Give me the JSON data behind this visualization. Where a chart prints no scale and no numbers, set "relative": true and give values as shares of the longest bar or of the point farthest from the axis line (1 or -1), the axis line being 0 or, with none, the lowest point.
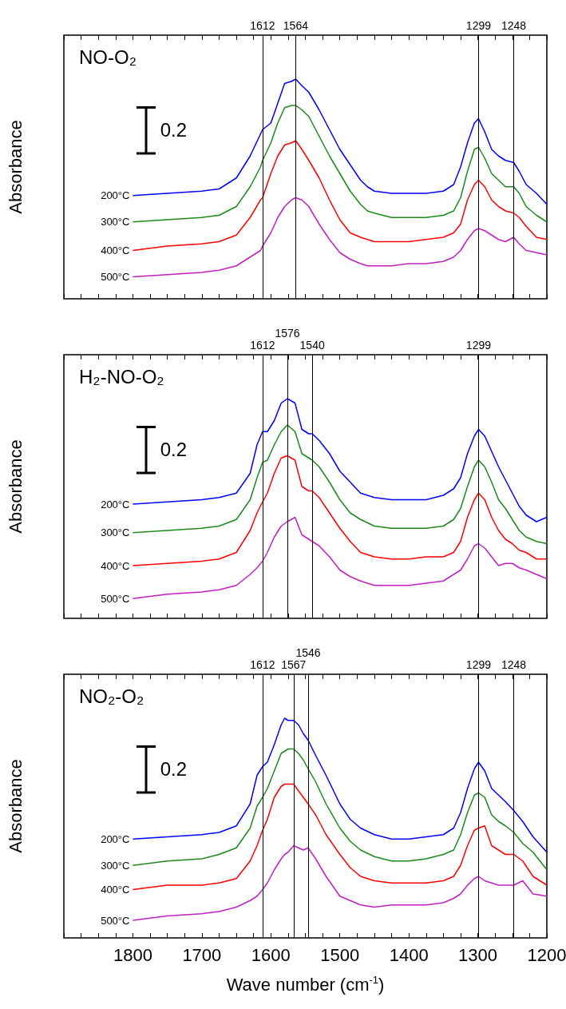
{
  "chart_data": [
    {
      "type": "line",
      "title": "NO-O₂",
      "ylabel": "Absorbance",
      "annotations": [
        "0.2"
      ],
      "relative": true,
      "tick_labels": false,
      "xlim": [
        1900,
        1200
      ],
      "xticks": [
        {
          "value": 1900,
          "label": null
        },
        {
          "value": 1875,
          "label": null
        },
        {
          "value": 1850,
          "label": null
        },
        {
          "value": 1825,
          "label": null
        },
        {
          "value": 1800,
          "label": null
        },
        {
          "value": 1775,
          "label": null
        },
        {
          "value": 1750,
          "label": null
        },
        {
          "value": 1725,
          "label": null
        },
        {
          "value": 1700,
          "label": null
        },
        {
          "value": 1675,
          "label": null
        },
        {
          "value": 1650,
          "label": null
        },
        {
          "value": 1625,
          "label": null
        },
        {
          "value": 1600,
          "label": null
        },
        {
          "value": 1575,
          "label": null
        },
        {
          "value": 1550,
          "label": null
        },
        {
          "value": 1525,
          "label": null
        },
        {
          "value": 1500,
          "label": null
        },
        {
          "value": 1475,
          "label": null
        },
        {
          "value": 1450,
          "label": null
        },
        {
          "value": 1425,
          "label": null
        },
        {
          "value": 1400,
          "label": null
        },
        {
          "value": 1375,
          "label": null
        },
        {
          "value": 1350,
          "label": null
        },
        {
          "value": 1325,
          "label": null
        },
        {
          "value": 1300,
          "label": null
        },
        {
          "value": 1275,
          "label": null
        },
        {
          "value": 1250,
          "label": null
        },
        {
          "value": 1225,
          "label": null
        },
        {
          "value": 1200,
          "label": null
        }
      ],
      "ref_lines": [
        {
          "axis": "x",
          "value": 1612,
          "label": "1612"
        },
        {
          "axis": "x",
          "value": 1564,
          "label": "1564"
        },
        {
          "axis": "x",
          "value": 1299,
          "label": "1299"
        },
        {
          "axis": "x",
          "value": 1248,
          "label": "1248"
        }
      ],
      "x": [
        1800,
        1750,
        1700,
        1675,
        1650,
        1630,
        1615,
        1612,
        1600,
        1590,
        1580,
        1570,
        1564,
        1555,
        1545,
        1530,
        1515,
        1500,
        1485,
        1470,
        1460,
        1450,
        1425,
        1400,
        1375,
        1350,
        1335,
        1325,
        1315,
        1305,
        1299,
        1290,
        1280,
        1270,
        1260,
        1248,
        1240,
        1230,
        1215,
        1200
      ],
      "series": [
        {
          "name": "200°C",
          "color": "#0000ff",
          "values": [
            0.47,
            0.48,
            0.49,
            0.5,
            0.55,
            0.65,
            0.75,
            0.77,
            0.8,
            0.89,
            0.98,
            0.99,
            1.0,
            0.97,
            0.94,
            0.86,
            0.77,
            0.68,
            0.61,
            0.54,
            0.51,
            0.49,
            0.48,
            0.48,
            0.48,
            0.49,
            0.52,
            0.6,
            0.71,
            0.8,
            0.82,
            0.76,
            0.68,
            0.65,
            0.63,
            0.62,
            0.58,
            0.52,
            0.48,
            0.43
          ]
        },
        {
          "name": "300°C",
          "color": "#1a8a1a",
          "values": [
            0.35,
            0.36,
            0.37,
            0.38,
            0.42,
            0.51,
            0.6,
            0.63,
            0.71,
            0.8,
            0.87,
            0.88,
            0.88,
            0.86,
            0.83,
            0.74,
            0.65,
            0.57,
            0.49,
            0.43,
            0.4,
            0.39,
            0.37,
            0.37,
            0.37,
            0.38,
            0.4,
            0.46,
            0.58,
            0.68,
            0.69,
            0.64,
            0.57,
            0.54,
            0.51,
            0.51,
            0.48,
            0.42,
            0.38,
            0.35
          ]
        },
        {
          "name": "400°C",
          "color": "#ff0000",
          "values": [
            0.22,
            0.24,
            0.25,
            0.26,
            0.29,
            0.37,
            0.45,
            0.46,
            0.57,
            0.65,
            0.7,
            0.71,
            0.72,
            0.68,
            0.63,
            0.55,
            0.45,
            0.36,
            0.3,
            0.28,
            0.27,
            0.26,
            0.26,
            0.26,
            0.27,
            0.28,
            0.3,
            0.34,
            0.45,
            0.52,
            0.54,
            0.51,
            0.45,
            0.42,
            0.4,
            0.39,
            0.37,
            0.33,
            0.28,
            0.27
          ]
        },
        {
          "name": "500°C",
          "color": "#c020c0",
          "values": [
            0.1,
            0.11,
            0.12,
            0.13,
            0.15,
            0.19,
            0.22,
            0.24,
            0.3,
            0.37,
            0.42,
            0.45,
            0.46,
            0.45,
            0.42,
            0.34,
            0.27,
            0.21,
            0.18,
            0.16,
            0.15,
            0.15,
            0.15,
            0.16,
            0.16,
            0.17,
            0.19,
            0.22,
            0.27,
            0.31,
            0.32,
            0.31,
            0.29,
            0.27,
            0.26,
            0.28,
            0.25,
            0.22,
            0.21,
            0.2
          ]
        }
      ]
    },
    {
      "type": "line",
      "title": "H₂-NO-O₂",
      "ylabel": "Absorbance",
      "annotations": [
        "0.2"
      ],
      "relative": true,
      "tick_labels": false,
      "xlim": [
        1900,
        1200
      ],
      "xticks": [
        {
          "value": 1900,
          "label": null
        },
        {
          "value": 1875,
          "label": null
        },
        {
          "value": 1850,
          "label": null
        },
        {
          "value": 1825,
          "label": null
        },
        {
          "value": 1800,
          "label": null
        },
        {
          "value": 1775,
          "label": null
        },
        {
          "value": 1750,
          "label": null
        },
        {
          "value": 1725,
          "label": null
        },
        {
          "value": 1700,
          "label": null
        },
        {
          "value": 1675,
          "label": null
        },
        {
          "value": 1650,
          "label": null
        },
        {
          "value": 1625,
          "label": null
        },
        {
          "value": 1600,
          "label": null
        },
        {
          "value": 1575,
          "label": null
        },
        {
          "value": 1550,
          "label": null
        },
        {
          "value": 1525,
          "label": null
        },
        {
          "value": 1500,
          "label": null
        },
        {
          "value": 1475,
          "label": null
        },
        {
          "value": 1450,
          "label": null
        },
        {
          "value": 1425,
          "label": null
        },
        {
          "value": 1400,
          "label": null
        },
        {
          "value": 1375,
          "label": null
        },
        {
          "value": 1350,
          "label": null
        },
        {
          "value": 1325,
          "label": null
        },
        {
          "value": 1300,
          "label": null
        },
        {
          "value": 1275,
          "label": null
        },
        {
          "value": 1250,
          "label": null
        },
        {
          "value": 1225,
          "label": null
        },
        {
          "value": 1200,
          "label": null
        }
      ],
      "ref_lines": [
        {
          "axis": "x",
          "value": 1612,
          "label": "1612"
        },
        {
          "axis": "x",
          "value": 1576,
          "label": "1576"
        },
        {
          "axis": "x",
          "value": 1540,
          "label": "1540"
        },
        {
          "axis": "x",
          "value": 1299,
          "label": "1299"
        }
      ],
      "x": [
        1800,
        1750,
        1700,
        1675,
        1650,
        1630,
        1620,
        1612,
        1605,
        1595,
        1585,
        1576,
        1565,
        1555,
        1545,
        1540,
        1530,
        1515,
        1500,
        1485,
        1470,
        1450,
        1425,
        1400,
        1375,
        1350,
        1335,
        1325,
        1315,
        1305,
        1299,
        1290,
        1280,
        1270,
        1260,
        1250,
        1240,
        1230,
        1215,
        1200
      ],
      "series": [
        {
          "name": "200°C",
          "color": "#0000ff",
          "values": [
            0.52,
            0.53,
            0.54,
            0.55,
            0.57,
            0.66,
            0.79,
            0.85,
            0.85,
            0.9,
            0.98,
            1.0,
            0.98,
            0.86,
            0.84,
            0.84,
            0.81,
            0.75,
            0.67,
            0.62,
            0.57,
            0.55,
            0.54,
            0.54,
            0.54,
            0.56,
            0.59,
            0.64,
            0.75,
            0.83,
            0.86,
            0.83,
            0.76,
            0.69,
            0.63,
            0.57,
            0.51,
            0.47,
            0.44,
            0.46
          ]
        },
        {
          "name": "300°C",
          "color": "#1a8a1a",
          "values": [
            0.39,
            0.4,
            0.41,
            0.42,
            0.45,
            0.54,
            0.64,
            0.71,
            0.72,
            0.79,
            0.85,
            0.88,
            0.85,
            0.75,
            0.73,
            0.72,
            0.69,
            0.62,
            0.54,
            0.48,
            0.45,
            0.42,
            0.41,
            0.41,
            0.41,
            0.42,
            0.45,
            0.5,
            0.6,
            0.69,
            0.72,
            0.69,
            0.62,
            0.54,
            0.5,
            0.45,
            0.4,
            0.37,
            0.35,
            0.34
          ]
        },
        {
          "name": "400°C",
          "color": "#ff0000",
          "values": [
            0.24,
            0.25,
            0.26,
            0.27,
            0.3,
            0.4,
            0.48,
            0.53,
            0.57,
            0.66,
            0.73,
            0.74,
            0.72,
            0.6,
            0.58,
            0.58,
            0.55,
            0.48,
            0.41,
            0.35,
            0.3,
            0.28,
            0.27,
            0.27,
            0.28,
            0.28,
            0.3,
            0.35,
            0.46,
            0.54,
            0.57,
            0.54,
            0.46,
            0.4,
            0.36,
            0.34,
            0.31,
            0.3,
            0.27,
            0.27
          ]
        },
        {
          "name": "500°C",
          "color": "#c020c0",
          "values": [
            0.09,
            0.11,
            0.12,
            0.13,
            0.15,
            0.2,
            0.23,
            0.26,
            0.3,
            0.37,
            0.42,
            0.44,
            0.46,
            0.38,
            0.36,
            0.35,
            0.33,
            0.28,
            0.22,
            0.19,
            0.17,
            0.15,
            0.15,
            0.15,
            0.16,
            0.17,
            0.2,
            0.22,
            0.27,
            0.33,
            0.34,
            0.32,
            0.28,
            0.24,
            0.25,
            0.25,
            0.23,
            0.22,
            0.2,
            0.18
          ]
        }
      ]
    },
    {
      "type": "line",
      "title": "NO₂-O₂",
      "xlabel": "Wave number (cm$^{-1}$)",
      "ylabel": "Absorbance",
      "annotations": [
        "0.2"
      ],
      "relative": true,
      "tick_labels": "x",
      "xlim": [
        1900,
        1200
      ],
      "xticks": [
        {
          "value": 1900,
          "label": null
        },
        {
          "value": 1875,
          "label": null
        },
        {
          "value": 1850,
          "label": null
        },
        {
          "value": 1825,
          "label": null
        },
        1800,
        {
          "value": 1775,
          "label": null
        },
        {
          "value": 1750,
          "label": null
        },
        {
          "value": 1725,
          "label": null
        },
        1700,
        {
          "value": 1675,
          "label": null
        },
        {
          "value": 1650,
          "label": null
        },
        {
          "value": 1625,
          "label": null
        },
        1600,
        {
          "value": 1575,
          "label": null
        },
        {
          "value": 1550,
          "label": null
        },
        {
          "value": 1525,
          "label": null
        },
        1500,
        {
          "value": 1475,
          "label": null
        },
        {
          "value": 1450,
          "label": null
        },
        {
          "value": 1425,
          "label": null
        },
        1400,
        {
          "value": 1375,
          "label": null
        },
        {
          "value": 1350,
          "label": null
        },
        {
          "value": 1325,
          "label": null
        },
        1300,
        {
          "value": 1275,
          "label": null
        },
        {
          "value": 1250,
          "label": null
        },
        {
          "value": 1225,
          "label": null
        },
        1200
      ],
      "ref_lines": [
        {
          "axis": "x",
          "value": 1612,
          "label": "1612"
        },
        {
          "axis": "x",
          "value": 1567,
          "label": "1567"
        },
        {
          "axis": "x",
          "value": 1546,
          "label": "1546"
        },
        {
          "axis": "x",
          "value": 1299,
          "label": "1299"
        },
        {
          "axis": "x",
          "value": 1248,
          "label": "1248"
        }
      ],
      "x": [
        1800,
        1750,
        1700,
        1675,
        1650,
        1630,
        1620,
        1612,
        1605,
        1595,
        1585,
        1580,
        1575,
        1567,
        1560,
        1553,
        1546,
        1535,
        1520,
        1500,
        1485,
        1470,
        1450,
        1425,
        1400,
        1375,
        1350,
        1335,
        1325,
        1315,
        1305,
        1299,
        1290,
        1280,
        1270,
        1260,
        1248,
        1235,
        1220,
        1200
      ],
      "series": [
        {
          "name": "200°C",
          "color": "#0000ff",
          "values": [
            0.45,
            0.46,
            0.47,
            0.48,
            0.51,
            0.61,
            0.74,
            0.78,
            0.8,
            0.88,
            0.97,
            1.0,
            0.99,
            0.99,
            0.97,
            0.93,
            0.9,
            0.83,
            0.74,
            0.61,
            0.54,
            0.5,
            0.47,
            0.45,
            0.45,
            0.46,
            0.47,
            0.5,
            0.57,
            0.68,
            0.77,
            0.8,
            0.76,
            0.68,
            0.65,
            0.62,
            0.58,
            0.53,
            0.46,
            0.39
          ]
        },
        {
          "name": "300°C",
          "color": "#1a8a1a",
          "values": [
            0.33,
            0.35,
            0.36,
            0.38,
            0.41,
            0.5,
            0.6,
            0.64,
            0.68,
            0.76,
            0.84,
            0.85,
            0.86,
            0.86,
            0.84,
            0.81,
            0.77,
            0.71,
            0.61,
            0.5,
            0.44,
            0.4,
            0.37,
            0.35,
            0.35,
            0.36,
            0.38,
            0.4,
            0.47,
            0.57,
            0.65,
            0.66,
            0.64,
            0.56,
            0.53,
            0.51,
            0.48,
            0.43,
            0.39,
            0.31
          ]
        },
        {
          "name": "400°C",
          "color": "#ff0000",
          "values": [
            0.22,
            0.24,
            0.24,
            0.25,
            0.27,
            0.35,
            0.42,
            0.49,
            0.54,
            0.64,
            0.69,
            0.7,
            0.7,
            0.7,
            0.67,
            0.64,
            0.61,
            0.56,
            0.47,
            0.38,
            0.32,
            0.28,
            0.26,
            0.25,
            0.25,
            0.25,
            0.26,
            0.28,
            0.33,
            0.42,
            0.49,
            0.5,
            0.51,
            0.42,
            0.4,
            0.38,
            0.38,
            0.35,
            0.28,
            0.24
          ]
        },
        {
          "name": "500°C",
          "color": "#c020c0",
          "values": [
            0.08,
            0.1,
            0.11,
            0.12,
            0.14,
            0.17,
            0.19,
            0.22,
            0.25,
            0.31,
            0.36,
            0.38,
            0.39,
            0.42,
            0.41,
            0.4,
            0.41,
            0.36,
            0.28,
            0.19,
            0.17,
            0.15,
            0.14,
            0.15,
            0.15,
            0.15,
            0.16,
            0.18,
            0.2,
            0.24,
            0.27,
            0.28,
            0.26,
            0.25,
            0.24,
            0.24,
            0.24,
            0.26,
            0.2,
            0.19
          ]
        }
      ]
    }
  ]
}
